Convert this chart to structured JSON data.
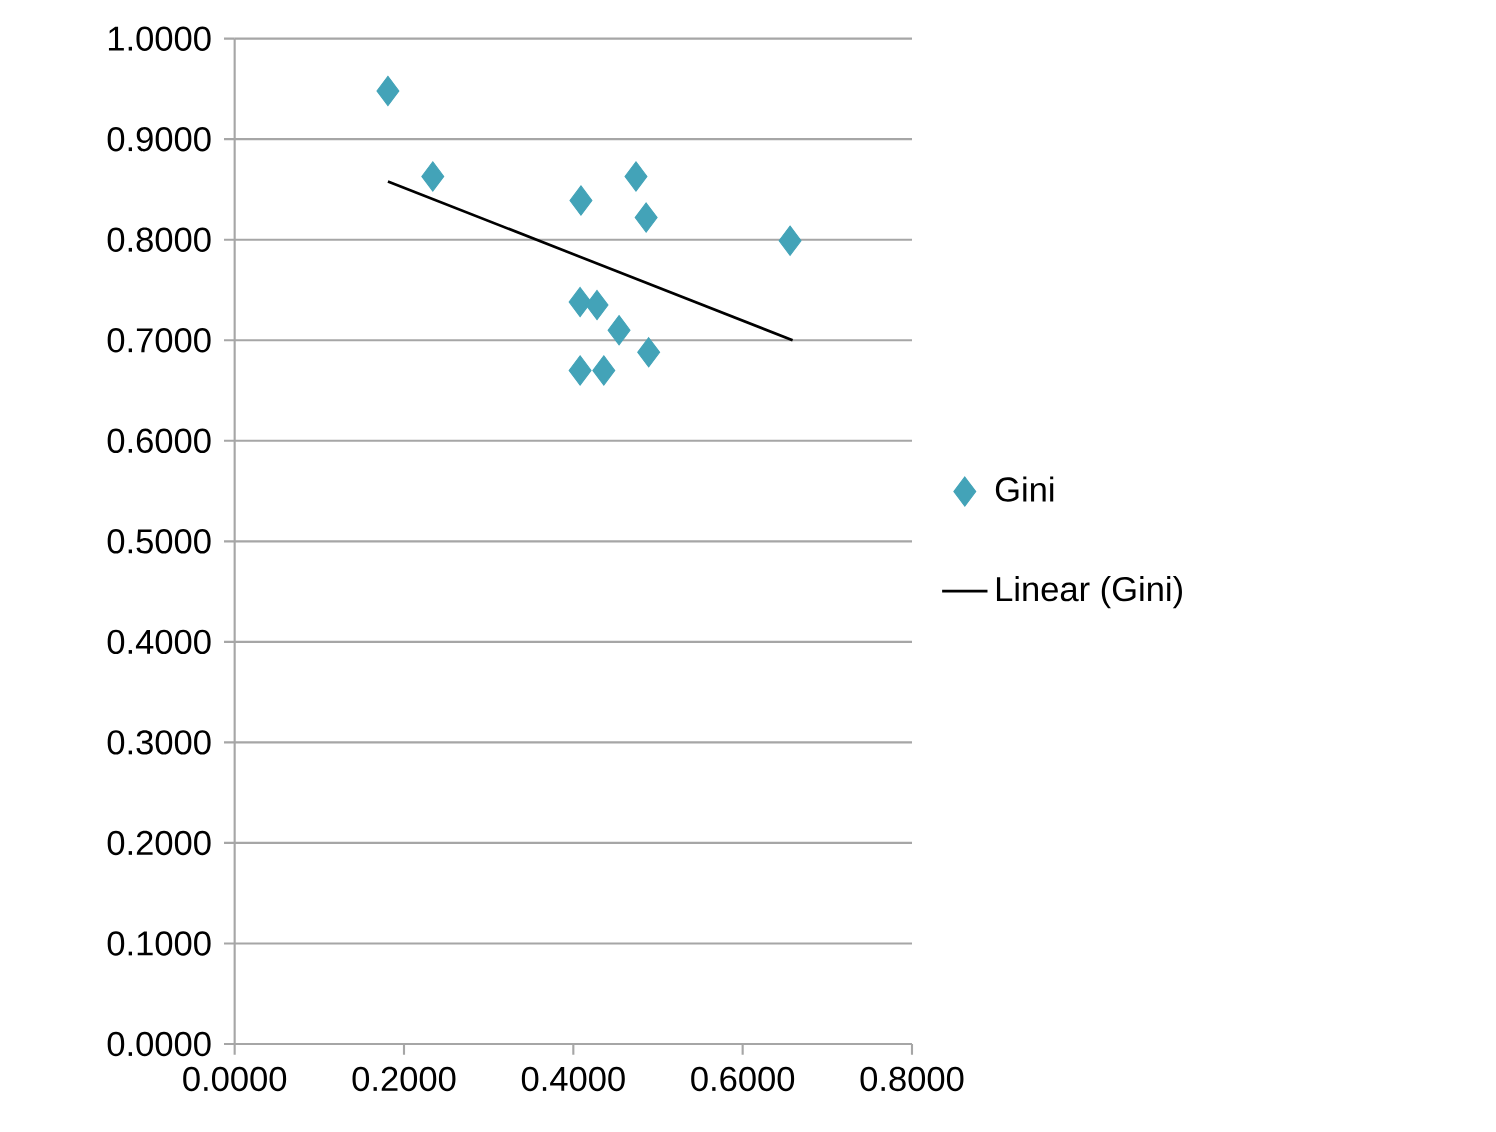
{
  "chart_data": {
    "type": "scatter",
    "grid": "y",
    "legend": "right",
    "marker": "diamond",
    "xlim": [
      0,
      0.8
    ],
    "ylim": [
      0,
      1
    ],
    "xticks": [
      {
        "value": 0,
        "label": "0.0000"
      },
      {
        "value": 0.2,
        "label": "0.2000"
      },
      {
        "value": 0.4,
        "label": "0.4000"
      },
      {
        "value": 0.6,
        "label": "0.6000"
      },
      {
        "value": 0.8,
        "label": "0.8000"
      }
    ],
    "yticks": [
      {
        "value": 0,
        "label": "0.0000"
      },
      {
        "value": 0.1,
        "label": "0.1000"
      },
      {
        "value": 0.2,
        "label": "0.2000"
      },
      {
        "value": 0.3,
        "label": "0.3000"
      },
      {
        "value": 0.4,
        "label": "0.4000"
      },
      {
        "value": 0.5,
        "label": "0.5000"
      },
      {
        "value": 0.6,
        "label": "0.6000"
      },
      {
        "value": 0.7,
        "label": "0.7000"
      },
      {
        "value": 0.8,
        "label": "0.8000"
      },
      {
        "value": 0.9,
        "label": "0.9000"
      },
      {
        "value": 1,
        "label": "1.0000"
      }
    ],
    "series": [
      {
        "name": "Gini",
        "color": "#43a3b8",
        "x": [
          0.181,
          0.234,
          0.409,
          0.474,
          0.486,
          0.656,
          0.408,
          0.428,
          0.454,
          0.489,
          0.408,
          0.436
        ],
        "values": [
          0.948,
          0.863,
          0.839,
          0.863,
          0.822,
          0.799,
          0.738,
          0.735,
          0.71,
          0.688,
          0.67,
          0.67
        ]
      },
      {
        "name": "Linear (Gini)",
        "type": "line",
        "marker": "none",
        "line_style": "solid",
        "color": "#000000",
        "x": [
          0.181,
          0.659
        ],
        "values": [
          0.858,
          0.7
        ]
      }
    ]
  }
}
